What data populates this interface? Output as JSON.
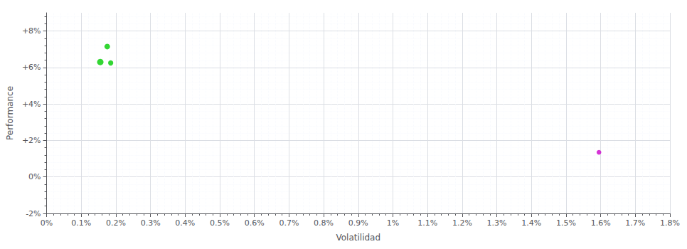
{
  "chart_data": {
    "type": "scatter",
    "xlabel": "Volatilidad",
    "ylabel": "Performance",
    "xlim": [
      0.0,
      0.018
    ],
    "ylim": [
      -0.02,
      0.09
    ],
    "xticks": [
      {
        "value": 0.0,
        "label": "0%"
      },
      {
        "value": 0.001,
        "label": "0.1%"
      },
      {
        "value": 0.002,
        "label": "0.2%"
      },
      {
        "value": 0.003,
        "label": "0.3%"
      },
      {
        "value": 0.004,
        "label": "0.4%"
      },
      {
        "value": 0.005,
        "label": "0.5%"
      },
      {
        "value": 0.006,
        "label": "0.6%"
      },
      {
        "value": 0.007,
        "label": "0.7%"
      },
      {
        "value": 0.008,
        "label": "0.8%"
      },
      {
        "value": 0.009,
        "label": "0.9%"
      },
      {
        "value": 0.01,
        "label": "1%"
      },
      {
        "value": 0.011,
        "label": "1.1%"
      },
      {
        "value": 0.012,
        "label": "1.2%"
      },
      {
        "value": 0.013,
        "label": "1.3%"
      },
      {
        "value": 0.014,
        "label": "1.4%"
      },
      {
        "value": 0.015,
        "label": "1.5%"
      },
      {
        "value": 0.016,
        "label": "1.6%"
      },
      {
        "value": 0.017,
        "label": "1.7%"
      },
      {
        "value": 0.018,
        "label": "1.8%"
      }
    ],
    "yticks": [
      {
        "value": -0.02,
        "label": "-2%"
      },
      {
        "value": 0.0,
        "label": "0%"
      },
      {
        "value": 0.02,
        "label": "+2%"
      },
      {
        "value": 0.04,
        "label": "+4%"
      },
      {
        "value": 0.06,
        "label": "+6%"
      },
      {
        "value": 0.08,
        "label": "+8%"
      }
    ],
    "grid": true,
    "series": [
      {
        "color": "#00cc00",
        "x": [
          0.00175,
          0.00155,
          0.00185
        ],
        "y": [
          0.0715,
          0.063,
          0.0625
        ],
        "sizes": [
          35,
          45,
          30
        ]
      },
      {
        "color": "#cc00cc",
        "x": [
          0.01595
        ],
        "y": [
          0.0135
        ],
        "sizes": [
          25
        ]
      }
    ]
  }
}
